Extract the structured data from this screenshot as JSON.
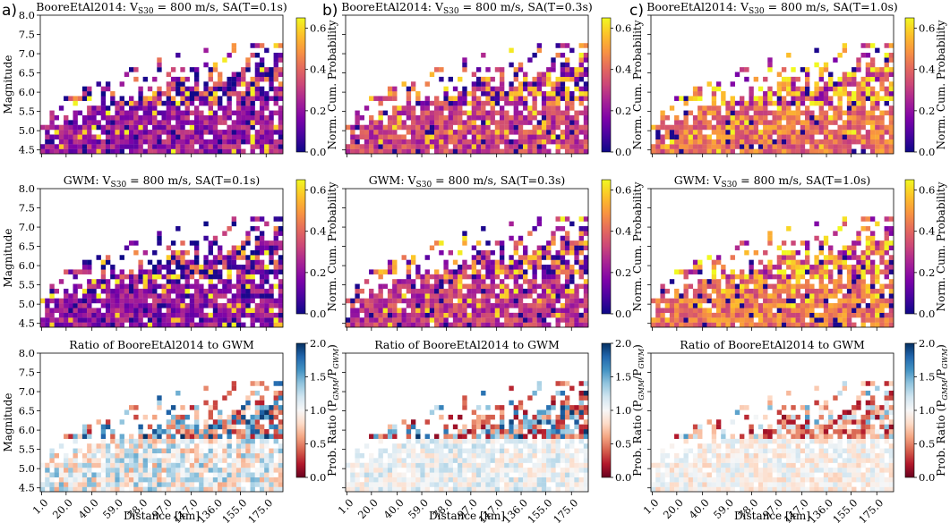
{
  "chart_data": {
    "type": "heatmap",
    "panel_letters": [
      "a)",
      "b)",
      "c)"
    ],
    "columns": [
      "T=0.1s",
      "T=0.3s",
      "T=1.0s"
    ],
    "x_axis": {
      "label": "Distance [km]",
      "ticks": [
        1.0,
        20.0,
        40.0,
        59.0,
        78.0,
        97.0,
        117.0,
        136.0,
        155.0,
        175.0
      ],
      "tick_labels": [
        "1.0",
        "20.0",
        "40.0",
        "59.0",
        "78.0",
        "97.0",
        "117.0",
        "136.0",
        "155.0",
        "175.0"
      ],
      "xlim": [
        0,
        188
      ]
    },
    "y_axis": {
      "label": "Magnitude",
      "ticks": [
        4.5,
        5.0,
        5.5,
        6.0,
        6.5,
        7.0,
        7.5,
        8.0
      ],
      "tick_labels": [
        "4.5",
        "5.0",
        "5.5",
        "6.0",
        "6.5",
        "7.0",
        "7.5",
        "8.0"
      ],
      "ylim": [
        4.4,
        8.0
      ]
    },
    "bins": {
      "distance_bins": 52,
      "magnitude_bins": 25,
      "magnitude_min": 4.4,
      "magnitude_step": 0.125
    },
    "rows": [
      {
        "titles": [
          "BooreEtAl2014: V$_{S30}$ = 800 m/s, SA(T=0.1s)",
          "BooreEtAl2014: V$_{S30}$ = 800 m/s, SA(T=0.3s)",
          "BooreEtAl2014: V$_{S30}$ = 800 m/s, SA(T=1.0s)"
        ],
        "colorbar": {
          "label": "Norm. Cum. Probability",
          "colormap": "plasma",
          "range": [
            0,
            0.65
          ],
          "ticks": [
            "0.0",
            "0.2",
            "0.4",
            "0.6"
          ]
        },
        "mean_level": [
          0.22,
          0.32,
          0.42
        ]
      },
      {
        "titles": [
          "GWM: V$_{S30}$ = 800 m/s, SA(T=0.1s)",
          "GWM: V$_{S30}$ = 800 m/s, SA(T=0.3s)",
          "GWM: V$_{S30}$ = 800 m/s, SA(T=1.0s)"
        ],
        "colorbar": {
          "label": "Norm. Cum. Probability",
          "colormap": "plasma",
          "range": [
            0,
            0.65
          ],
          "ticks": [
            "0.0",
            "0.2",
            "0.4",
            "0.6"
          ]
        },
        "mean_level": [
          0.2,
          0.3,
          0.43
        ]
      },
      {
        "titles": [
          "Ratio of BooreEtAl2014 to GWM",
          "Ratio of BooreEtAl2014 to GWM",
          "Ratio of BooreEtAl2014 to GWM"
        ],
        "colorbar": {
          "label": "Prob. Ratio (P_GMM/P_GWM)",
          "colormap": "RdBu",
          "range": [
            0,
            2.0
          ],
          "ticks": [
            "0.0",
            "0.5",
            "1.0",
            "1.5",
            "2.0"
          ]
        },
        "mean_level": [
          1.0,
          1.0,
          1.0
        ]
      }
    ]
  }
}
